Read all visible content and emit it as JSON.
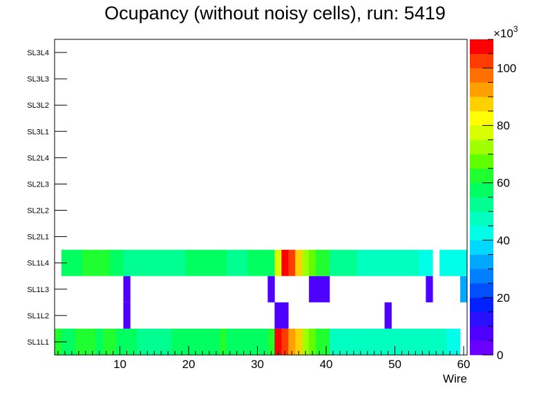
{
  "chart_data": {
    "type": "heatmap",
    "title": "Ocupancy (without noisy cells), run: 5419",
    "xlabel": "Wire",
    "ylabel": "",
    "xlim": [
      0.5,
      60.5
    ],
    "x_ticks": [
      10,
      20,
      30,
      40,
      50,
      60
    ],
    "y_categories": [
      "SL1L1",
      "SL1L2",
      "SL1L3",
      "SL1L4",
      "SL2L1",
      "SL2L2",
      "SL2L3",
      "SL2L4",
      "SL3L1",
      "SL3L2",
      "SL3L3",
      "SL3L4"
    ],
    "z_range": [
      0,
      110000
    ],
    "z_ticks": [
      0,
      20,
      40,
      60,
      80,
      100
    ],
    "z_multiplier": "×10",
    "z_multiplier_exp": "3",
    "rows": {
      "SL1L1": [
        62000,
        55000,
        55000,
        60000,
        60000,
        60000,
        55000,
        60000,
        62000,
        55000,
        55000,
        55000,
        50000,
        50000,
        50000,
        52000,
        52000,
        55000,
        55000,
        55000,
        55000,
        55000,
        55000,
        55000,
        60000,
        55000,
        55000,
        55000,
        55000,
        55000,
        55000,
        60000,
        110000,
        100000,
        92000,
        85000,
        75000,
        65000,
        60000,
        60000,
        48000,
        48000,
        48000,
        48000,
        48000,
        48000,
        48000,
        45000,
        45000,
        45000,
        45000,
        45000,
        45000,
        45000,
        45000,
        45000,
        45000,
        40000,
        40000,
        null
      ],
      "SL1L2": [
        null,
        null,
        null,
        null,
        null,
        null,
        null,
        null,
        null,
        null,
        6000,
        null,
        null,
        null,
        null,
        null,
        null,
        null,
        null,
        null,
        null,
        null,
        null,
        null,
        null,
        null,
        null,
        null,
        null,
        null,
        null,
        null,
        6000,
        6000,
        null,
        null,
        null,
        null,
        null,
        null,
        null,
        null,
        null,
        null,
        null,
        null,
        null,
        null,
        6000,
        null,
        null,
        null,
        null,
        null,
        null,
        null,
        null,
        null,
        null,
        null
      ],
      "SL1L3": [
        null,
        null,
        null,
        null,
        null,
        null,
        null,
        null,
        null,
        null,
        6000,
        null,
        null,
        null,
        null,
        null,
        null,
        null,
        null,
        null,
        null,
        null,
        null,
        null,
        null,
        null,
        null,
        null,
        null,
        null,
        null,
        6000,
        null,
        null,
        null,
        null,
        null,
        6000,
        6000,
        6000,
        null,
        null,
        null,
        null,
        null,
        null,
        null,
        null,
        null,
        null,
        null,
        null,
        null,
        null,
        6000,
        null,
        null,
        null,
        null,
        30000
      ],
      "SL1L4": [
        null,
        55000,
        55000,
        55000,
        60000,
        60000,
        60000,
        60000,
        55000,
        55000,
        50000,
        50000,
        52000,
        52000,
        52000,
        52000,
        52000,
        52000,
        52000,
        55000,
        55000,
        55000,
        55000,
        55000,
        55000,
        52000,
        52000,
        52000,
        55000,
        55000,
        55000,
        55000,
        78000,
        110000,
        100000,
        88000,
        72000,
        68000,
        62000,
        62000,
        52000,
        52000,
        52000,
        52000,
        45000,
        45000,
        45000,
        45000,
        45000,
        45000,
        45000,
        45000,
        45000,
        40000,
        40000,
        null,
        40000,
        40000,
        40000,
        40000
      ],
      "SL2L1": [],
      "SL2L2": [],
      "SL2L3": [],
      "SL2L4": [],
      "SL3L1": [],
      "SL3L2": [],
      "SL3L3": [],
      "SL3L4": []
    },
    "palette": [
      "#6b00ff",
      "#4e00ff",
      "#2a10ff",
      "#0020ff",
      "#0050ff",
      "#0080ff",
      "#00a8ff",
      "#00d8ff",
      "#00ffe8",
      "#00ffc0",
      "#00ff90",
      "#00ff60",
      "#20ff30",
      "#60ff00",
      "#a0ff00",
      "#d8ff00",
      "#ffff00",
      "#ffd000",
      "#ffa000",
      "#ff7000",
      "#ff3c00",
      "#ff0000"
    ],
    "legend_position": "right"
  }
}
